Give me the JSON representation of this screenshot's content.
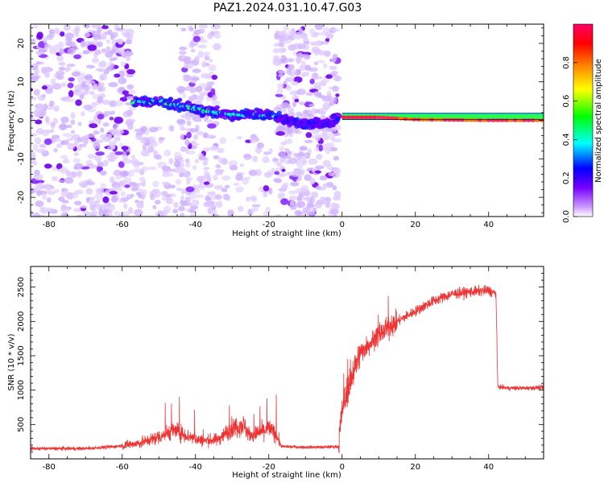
{
  "title": "PAZ1.2024.031.10.47.G03",
  "chart_data": [
    {
      "type": "heatmap",
      "xlabel": "Height of straight line (km)",
      "ylabel": "Frequency (Hz)",
      "xlim": [
        -85,
        55
      ],
      "ylim": [
        -25,
        25
      ],
      "xticks": [
        -80,
        -60,
        -40,
        -20,
        0,
        20,
        40
      ],
      "yticks": [
        -20,
        -10,
        0,
        10,
        20
      ],
      "colorbar": {
        "label": "Normalized spectral amplitude",
        "range": [
          0,
          1
        ],
        "ticks": [
          "0.0",
          "0.2",
          "0.4",
          "0.6",
          "0.8"
        ],
        "colormap": [
          "#ffffff",
          "#cc99ff",
          "#7700ff",
          "#0000ff",
          "#00ffff",
          "#00ff00",
          "#ffff00",
          "#ff8800",
          "#ff0000",
          "#ff0066"
        ]
      },
      "ridge": [
        {
          "x": -57,
          "y": 4.5
        },
        {
          "x": -50,
          "y": 5
        },
        {
          "x": -45,
          "y": 4
        },
        {
          "x": -40,
          "y": 3
        },
        {
          "x": -35,
          "y": 2
        },
        {
          "x": -30,
          "y": 1.5
        },
        {
          "x": -25,
          "y": 1.5
        },
        {
          "x": -20,
          "y": 1.5
        },
        {
          "x": -15,
          "y": 0
        },
        {
          "x": -10,
          "y": -1
        },
        {
          "x": -5,
          "y": -1
        },
        {
          "x": -1,
          "y": 0
        },
        {
          "x": 0,
          "y": 0.8
        },
        {
          "x": 10,
          "y": 0.8
        },
        {
          "x": 20,
          "y": 0.2
        },
        {
          "x": 30,
          "y": 0.1
        },
        {
          "x": 40,
          "y": 0
        },
        {
          "x": 55,
          "y": 0
        }
      ]
    },
    {
      "type": "line",
      "xlabel": "Height of straight line (km)",
      "ylabel": "SNR (10 * v/v)",
      "xlim": [
        -85,
        55
      ],
      "ylim": [
        0,
        2800
      ],
      "xticks": [
        -80,
        -60,
        -40,
        -20,
        0,
        20,
        40
      ],
      "yticks": [
        500,
        1000,
        1500,
        2000,
        2500
      ],
      "color": "#ee3333",
      "envelope": [
        {
          "x": -85,
          "y": 150
        },
        {
          "x": -70,
          "y": 150
        },
        {
          "x": -62,
          "y": 180
        },
        {
          "x": -55,
          "y": 230
        },
        {
          "x": -50,
          "y": 320
        },
        {
          "x": -46,
          "y": 420
        },
        {
          "x": -42,
          "y": 330
        },
        {
          "x": -38,
          "y": 260
        },
        {
          "x": -34,
          "y": 280
        },
        {
          "x": -30,
          "y": 450
        },
        {
          "x": -27,
          "y": 500
        },
        {
          "x": -25,
          "y": 330
        },
        {
          "x": -22,
          "y": 400
        },
        {
          "x": -20,
          "y": 450
        },
        {
          "x": -18,
          "y": 350
        },
        {
          "x": -16.5,
          "y": 180
        },
        {
          "x": -10,
          "y": 170
        },
        {
          "x": -5,
          "y": 170
        },
        {
          "x": -1,
          "y": 180
        },
        {
          "x": 0,
          "y": 700
        },
        {
          "x": 2,
          "y": 1100
        },
        {
          "x": 5,
          "y": 1550
        },
        {
          "x": 10,
          "y": 1800
        },
        {
          "x": 15,
          "y": 2000
        },
        {
          "x": 20,
          "y": 2150
        },
        {
          "x": 25,
          "y": 2300
        },
        {
          "x": 30,
          "y": 2400
        },
        {
          "x": 35,
          "y": 2430
        },
        {
          "x": 40,
          "y": 2450
        },
        {
          "x": 42,
          "y": 2400
        },
        {
          "x": 42.5,
          "y": 1050
        },
        {
          "x": 45,
          "y": 1030
        },
        {
          "x": 50,
          "y": 1030
        },
        {
          "x": 55,
          "y": 1040
        }
      ]
    }
  ]
}
